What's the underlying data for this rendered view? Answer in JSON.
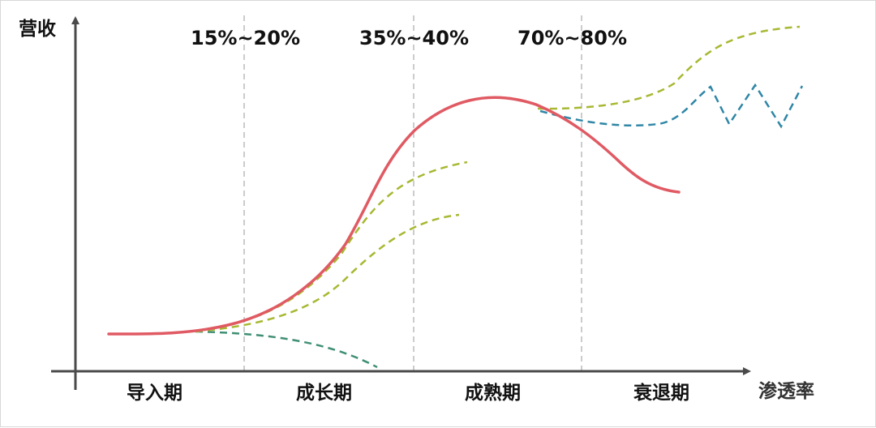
{
  "diagram": {
    "y_axis_label": "营收",
    "x_axis_label": "渗透率",
    "thresholds": [
      "15%~20%",
      "35%~40%",
      "70%~80%"
    ],
    "stages": [
      "导入期",
      "成长期",
      "成熟期",
      "衰退期"
    ],
    "colors": {
      "main_curve": "#e05a63",
      "yellow_green_dashed": "#a8b832",
      "blue_dashed": "#2f86a6",
      "green_dashed": "#3f8f74",
      "divider": "#bcbcbc",
      "axis": "#4a4a4a"
    }
  }
}
